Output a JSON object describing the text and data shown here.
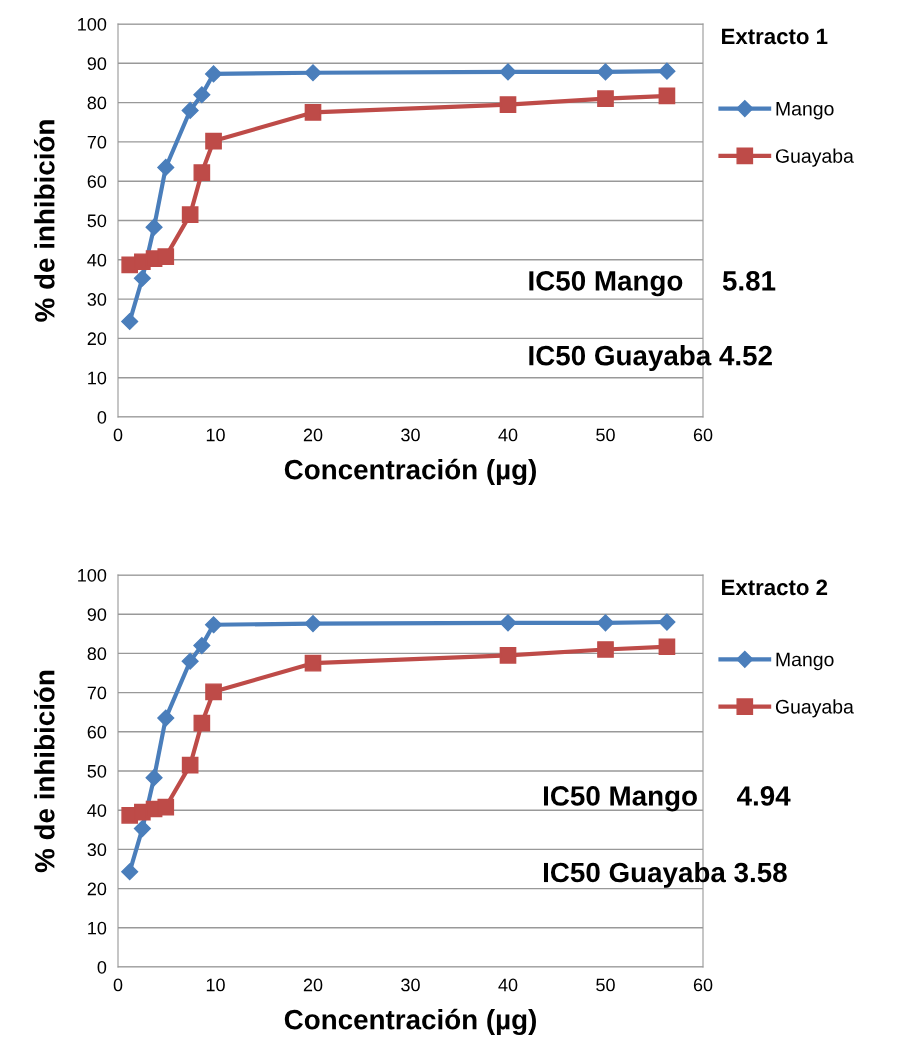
{
  "chart_data": [
    {
      "type": "line",
      "title": "Extracto 1",
      "xlabel": "Concentración (µg)",
      "ylabel": "% de inhibición",
      "xlim": [
        0,
        60
      ],
      "xticks": [
        0,
        10,
        20,
        30,
        40,
        50,
        60
      ],
      "ylim": [
        0,
        100
      ],
      "yticks": [
        0,
        10,
        20,
        30,
        40,
        50,
        60,
        70,
        80,
        90,
        100
      ],
      "grid": "y",
      "legend": "right",
      "line_style": "solid",
      "x": [
        1.2,
        2.5,
        3.7,
        4.9,
        7.4,
        8.6,
        9.8,
        20,
        40,
        50,
        56.3
      ],
      "series": [
        {
          "name": "Mango",
          "color": "#4a7ebb",
          "marker": "diamond",
          "values": [
            24.3,
            35.3,
            48.3,
            63.5,
            78,
            82,
            87.3,
            87.6,
            87.8,
            87.8,
            88
          ]
        },
        {
          "name": "Guayaba",
          "color": "#be4b48",
          "marker": "square",
          "values": [
            38.7,
            39.5,
            40.3,
            40.8,
            51.5,
            62.2,
            70.2,
            77.5,
            79.5,
            81,
            81.7
          ]
        }
      ],
      "annotations": [
        "IC50 Mango     5.81",
        "IC50 Guayaba 4.52"
      ]
    },
    {
      "type": "line",
      "title": "Extracto 2",
      "xlabel": "Concentración (µg)",
      "ylabel": "% de inhibición",
      "xlim": [
        0,
        60
      ],
      "xticks": [
        0,
        10,
        20,
        30,
        40,
        50,
        60
      ],
      "ylim": [
        0,
        100
      ],
      "yticks": [
        0,
        10,
        20,
        30,
        40,
        50,
        60,
        70,
        80,
        90,
        100
      ],
      "grid": "y",
      "legend": "right",
      "line_style": "solid",
      "x": [
        1.2,
        2.5,
        3.7,
        4.9,
        7.4,
        8.6,
        9.8,
        20,
        40,
        50,
        56.3
      ],
      "series": [
        {
          "name": "Mango",
          "color": "#4a7ebb",
          "marker": "diamond",
          "values": [
            24.3,
            35.3,
            48.3,
            63.5,
            78,
            82,
            87.3,
            87.6,
            87.8,
            87.8,
            88
          ]
        },
        {
          "name": "Guayaba",
          "color": "#be4b48",
          "marker": "square",
          "values": [
            38.7,
            39.5,
            40.3,
            40.8,
            51.5,
            62.2,
            70.2,
            77.5,
            79.5,
            81,
            81.7
          ]
        }
      ],
      "annotations": [
        "IC50 Mango     4.94",
        "IC50 Guayaba 3.58"
      ]
    }
  ]
}
